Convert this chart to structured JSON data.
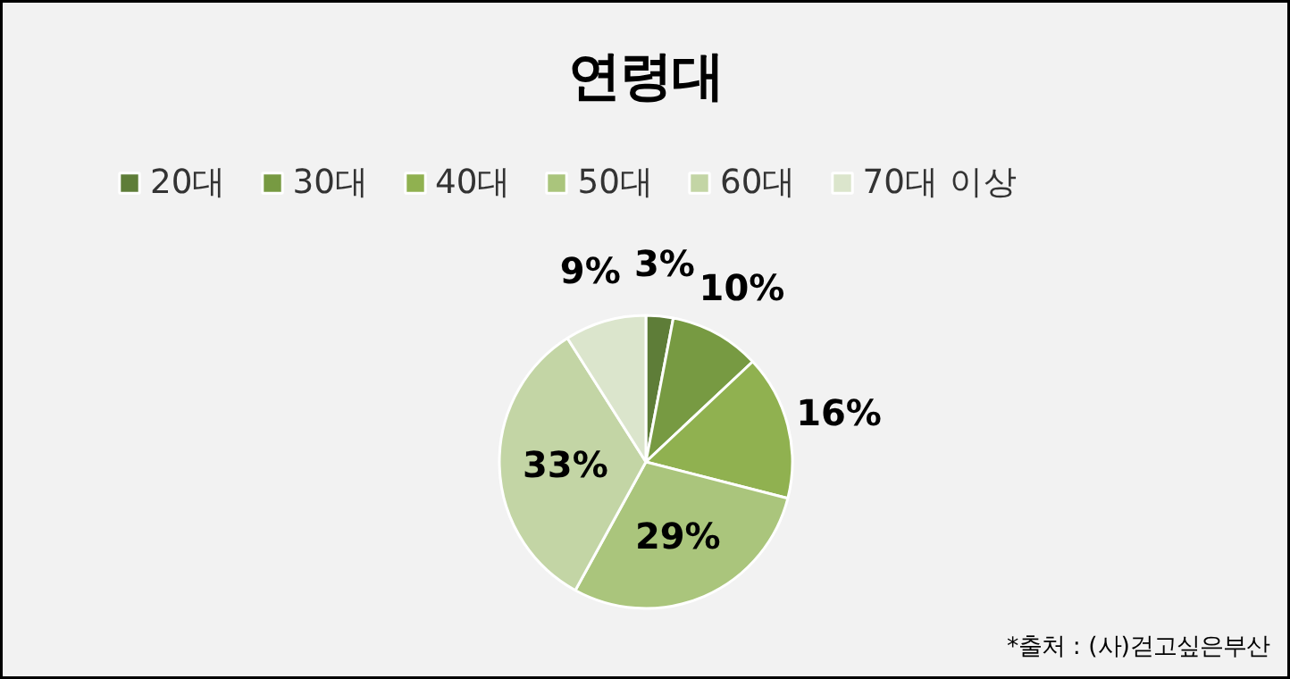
{
  "chart_data": {
    "type": "pie",
    "title": "연령대",
    "categories": [
      "20대",
      "30대",
      "40대",
      "50대",
      "60대",
      "70대 이상"
    ],
    "values": [
      3,
      10,
      16,
      29,
      33,
      9
    ],
    "value_labels": [
      "3%",
      "10%",
      "16%",
      "29%",
      "33%",
      "9%"
    ],
    "colors": [
      "#5e7d38",
      "#779a42",
      "#90b150",
      "#aac57c",
      "#c3d5a5",
      "#dbe5cc"
    ],
    "legend": "top",
    "annotations": [
      "*출처 : (사)걷고싶은부산"
    ]
  }
}
